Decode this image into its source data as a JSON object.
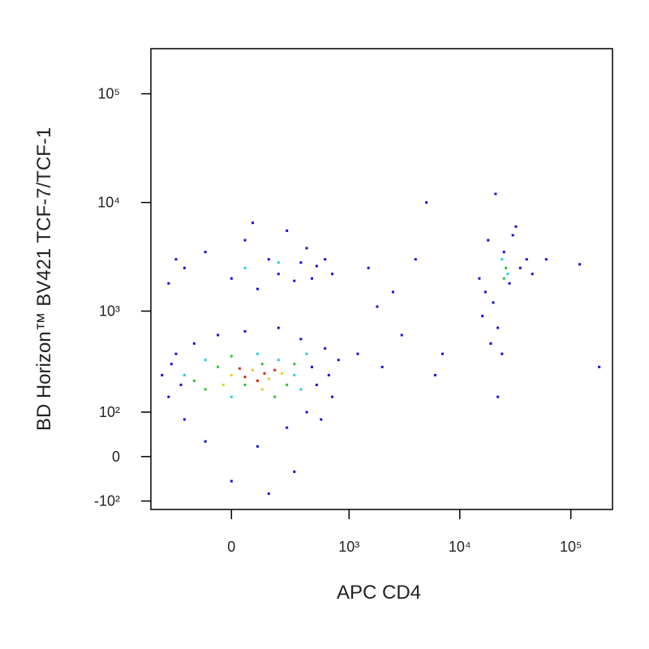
{
  "chart_data": {
    "type": "scatter",
    "x_label": "APC CD4",
    "y_label": "BD Horizon™ BV421 TCF-7/TCF-1",
    "xscale": "biexponential",
    "yscale": "biexponential",
    "xlim": [
      -451,
      237000
    ],
    "ylim": [
      -126,
      260000
    ],
    "xticks": [
      0,
      {
        "value": 1000,
        "label": "10³"
      },
      {
        "value": 10000,
        "label": "10⁴"
      },
      {
        "value": 100000,
        "label": "10⁵"
      }
    ],
    "yticks": [
      {
        "value": -100,
        "label": "-10²"
      },
      0,
      {
        "value": 100,
        "label": "10²"
      },
      {
        "value": 1000,
        "label": "10³"
      },
      {
        "value": 10000,
        "label": "10⁴"
      },
      {
        "value": 100000,
        "label": "10⁵"
      }
    ],
    "series": [
      {
        "color": "#1010e0",
        "x": [
          -350,
          -300,
          -250,
          -200,
          -150,
          -100,
          -50,
          0,
          50,
          100,
          150,
          200,
          250,
          300,
          350,
          400,
          450,
          500,
          600,
          700,
          800,
          -280,
          -220,
          550,
          650,
          -300,
          -200,
          -100,
          0,
          50,
          100,
          150,
          200,
          250,
          300,
          350,
          400,
          450,
          500,
          600,
          700,
          -250,
          80,
          1200,
          1500,
          2000,
          2500,
          3000,
          4000,
          5000,
          6000,
          1800,
          7000,
          15000,
          18000,
          20000,
          22000,
          25000,
          28000,
          30000,
          35000,
          40000,
          45000,
          16000,
          19000,
          24000,
          21000,
          60000,
          120000,
          180000,
          22000,
          17000,
          32000
        ],
        "values": [
          250,
          150,
          400,
          80,
          500,
          30,
          600,
          -50,
          650,
          20,
          -80,
          700,
          60,
          -30,
          550,
          100,
          300,
          200,
          450,
          150,
          350,
          320,
          200,
          80,
          250,
          1800,
          2500,
          3500,
          2000,
          4500,
          1600,
          3000,
          2200,
          5500,
          1900,
          2800,
          3800,
          2000,
          2600,
          3000,
          2200,
          3000,
          6500,
          400,
          2500,
          300,
          1500,
          600,
          3000,
          10000,
          250,
          1100,
          400,
          2000,
          4500,
          1200,
          700,
          3500,
          1800,
          5000,
          2500,
          3000,
          2200,
          900,
          500,
          400,
          12000,
          3000,
          2700,
          300,
          150,
          1500,
          6000
        ]
      },
      {
        "color": "#20d0e0",
        "x": [
          -200,
          0,
          100,
          200,
          350,
          400,
          -100,
          50,
          200,
          27000,
          24000,
          300
        ],
        "values": [
          250,
          150,
          400,
          350,
          180,
          400,
          350,
          2500,
          2800,
          2200,
          3000,
          250
        ]
      },
      {
        "color": "#30c030",
        "x": [
          -150,
          -50,
          50,
          120,
          250,
          300,
          0,
          180,
          26000,
          25000,
          -100
        ],
        "values": [
          220,
          300,
          200,
          320,
          200,
          320,
          380,
          150,
          2500,
          2000,
          180
        ]
      },
      {
        "color": "#e0d020",
        "x": [
          0,
          80,
          150,
          220,
          -30,
          120
        ],
        "values": [
          250,
          280,
          230,
          260,
          200,
          180
        ]
      },
      {
        "color": "#e02010",
        "x": [
          50,
          130,
          180,
          100,
          30
        ],
        "values": [
          240,
          260,
          280,
          220,
          290
        ]
      }
    ]
  }
}
